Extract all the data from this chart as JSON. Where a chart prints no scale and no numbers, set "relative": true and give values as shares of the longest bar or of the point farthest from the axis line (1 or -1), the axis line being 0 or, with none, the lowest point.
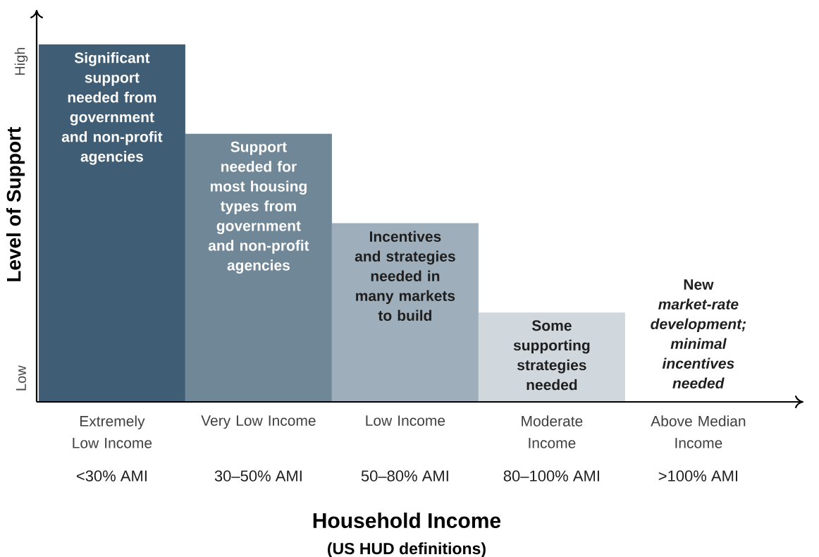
{
  "chart_data": {
    "type": "bar",
    "relative": true,
    "xlabel": "Household Income",
    "ylabel": "Level of Support",
    "categories": [
      "Extremely Low Income",
      "Very Low Income",
      "Low Income",
      "Moderate Income",
      "Above Median Income"
    ],
    "values": [
      1,
      0.75,
      0.5,
      0.25,
      0
    ],
    "colors": [
      "#3f5d74",
      "#6f8797",
      "#9eafbb",
      "#d0d8de",
      "#ffffff"
    ],
    "annotations": [
      {
        "text": "Significant support needed from government and non-profit agencies",
        "x": "Extremely Low Income",
        "y": 1
      },
      {
        "text": "Support needed for most housing types from government and non-profit agencies",
        "x": "Very Low Income",
        "y": 0.75
      },
      {
        "text": "Incentives and strategies needed in many markets to build",
        "x": "Low Income",
        "y": 0.5
      },
      {
        "text": "Some supporting strategies needed",
        "x": "Moderate Income",
        "y": 0.25
      },
      {
        "text": "New *market-rate development; minimal incentives needed*",
        "x": "Above Median Income",
        "y": 0
      },
      "<30% AMI",
      "30–50% AMI",
      "50–80% AMI",
      "80–100% AMI",
      ">100% AMI",
      "High",
      "Low",
      "(US HUD definitions)"
    ]
  }
}
